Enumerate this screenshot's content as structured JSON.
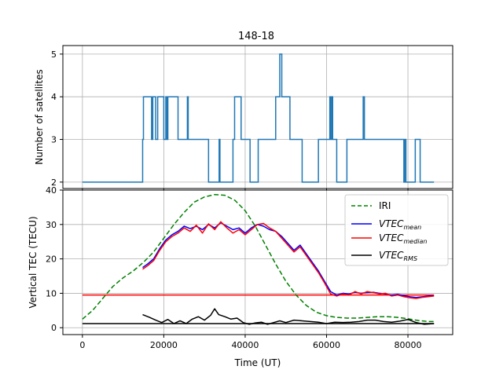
{
  "chart_data": [
    {
      "type": "line",
      "title": "148-18",
      "xlabel": "",
      "ylabel": "Number of satellites",
      "xlim": [
        -4800,
        91000
      ],
      "ylim": [
        1.85,
        5.2
      ],
      "yticks": [
        2,
        3,
        4,
        5
      ],
      "grid": true,
      "series": [
        {
          "name": "",
          "color": "#1f77b4",
          "step": true,
          "x": [
            0,
            14800,
            15000,
            17000,
            17300,
            18000,
            18500,
            20000,
            20500,
            20800,
            21000,
            23500,
            24000,
            25800,
            26000,
            27000,
            27500,
            31000,
            31300,
            33600,
            33800,
            34000,
            34200,
            37000,
            37400,
            39000,
            39300,
            41200,
            41400,
            43200,
            43500,
            47500,
            47800,
            48500,
            49000,
            50500,
            51000,
            54000,
            54200,
            58000,
            58300,
            60800,
            61000,
            61300,
            61500,
            62500,
            62800,
            65000,
            65300,
            69000,
            69300,
            69800,
            70000,
            79000,
            79200,
            79500,
            79700,
            81800,
            82000,
            83000,
            83300,
            86400
          ],
          "y": [
            2,
            3,
            4,
            3,
            4,
            3,
            4,
            3,
            4,
            3,
            4,
            3,
            3,
            4,
            3,
            3,
            3,
            2,
            2,
            3,
            2,
            2,
            2,
            3,
            4,
            3,
            3,
            2,
            2,
            3,
            3,
            4,
            4,
            5,
            4,
            4,
            3,
            2,
            2,
            3,
            3,
            4,
            3,
            4,
            3,
            2,
            2,
            3,
            3,
            4,
            3,
            3,
            3,
            2,
            3,
            2,
            2,
            3,
            3,
            2,
            2,
            2
          ]
        }
      ]
    },
    {
      "type": "line",
      "title": "",
      "xlabel": "Time (UT)",
      "ylabel": "Vertical TEC (TECU)",
      "xlim": [
        -4800,
        91000
      ],
      "ylim": [
        -2,
        40
      ],
      "xticks": [
        0,
        20000,
        40000,
        60000,
        80000
      ],
      "yticks": [
        0,
        10,
        20,
        30,
        40
      ],
      "grid": true,
      "legend_placement": "top-right",
      "series": [
        {
          "name": "IRI",
          "legend_text": "IRI",
          "color": "#008000",
          "dash": true,
          "x": [
            0,
            2500,
            5000,
            7500,
            10000,
            12500,
            15000,
            17500,
            20000,
            22500,
            25000,
            27500,
            30000,
            32500,
            35000,
            37500,
            40000,
            42500,
            45000,
            47500,
            50000,
            52500,
            55000,
            57500,
            60000,
            62500,
            65000,
            67500,
            70000,
            72500,
            75000,
            77500,
            80000,
            82500,
            85000,
            86400
          ],
          "y": [
            2.5,
            5,
            8.5,
            12,
            14.5,
            16.5,
            19,
            22,
            26,
            30,
            33.5,
            36.5,
            38,
            38.7,
            38.5,
            37,
            34,
            29.5,
            24,
            18.5,
            13.5,
            9.5,
            6.5,
            4.5,
            3.5,
            3,
            2.8,
            2.8,
            3,
            3.2,
            3.2,
            3,
            2.6,
            2.1,
            1.8,
            1.8
          ]
        },
        {
          "name": "VTEC_mean",
          "legend_math": "VTEC",
          "legend_sub": "mean",
          "color": "#0000ff",
          "x": [
            14800,
            16000,
            17500,
            19000,
            20500,
            22000,
            23500,
            25000,
            26500,
            28000,
            29500,
            31000,
            32500,
            34000,
            35500,
            37000,
            38500,
            40000,
            41500,
            43000,
            44500,
            46000,
            47500,
            49000,
            50500,
            52000,
            53500,
            55000,
            56500,
            58000,
            59500,
            61000,
            62500,
            64000,
            65500,
            67000,
            68500,
            70000,
            71500,
            73000,
            74500,
            76000,
            77500,
            79000,
            80500,
            82000,
            83500,
            85000,
            86400
          ],
          "y": [
            17.5,
            18.5,
            20,
            23,
            25.5,
            27,
            28,
            29.5,
            28.8,
            29.5,
            28.5,
            30,
            29,
            30.5,
            29.5,
            28.5,
            29,
            27.5,
            29,
            30,
            29.5,
            28.5,
            28,
            26.5,
            24.5,
            22.5,
            24,
            21.5,
            19,
            16.5,
            13.5,
            10.5,
            9.5,
            10,
            9.8,
            10.3,
            10,
            10.2,
            10.3,
            10,
            9.8,
            9.5,
            9.7,
            9.3,
            9,
            8.8,
            9,
            9.2,
            9.3
          ]
        },
        {
          "name": "VTEC_median",
          "legend_math": "VTEC",
          "legend_sub": "median",
          "color": "#ff0000",
          "x": [
            14800,
            16000,
            17500,
            19000,
            20500,
            22000,
            23500,
            25000,
            26500,
            28000,
            29500,
            31000,
            32500,
            34000,
            35500,
            37000,
            38500,
            40000,
            41500,
            43000,
            44500,
            46000,
            47500,
            49000,
            50500,
            52000,
            53500,
            55000,
            56500,
            58000,
            59500,
            61000,
            62500,
            64000,
            65500,
            67000,
            68500,
            70000,
            71500,
            73000,
            74500,
            76000,
            77500,
            79000,
            80500,
            82000,
            83500,
            85000,
            86400
          ],
          "y": [
            17,
            18,
            19.5,
            22.5,
            25,
            26.5,
            27.5,
            29,
            28,
            29.8,
            27.5,
            30.2,
            28.5,
            30.8,
            29,
            27.5,
            28.5,
            27,
            28.5,
            30,
            30.3,
            29,
            28,
            26,
            24,
            22,
            23.5,
            21,
            18.5,
            16,
            13,
            9.8,
            9.2,
            9.8,
            9.5,
            10.5,
            9.8,
            10.5,
            10.2,
            9.8,
            10,
            9.2,
            9.5,
            9,
            8.7,
            8.5,
            8.8,
            9,
            9.2
          ]
        },
        {
          "name": "VTEC_RMS",
          "legend_math": "VTEC",
          "legend_sub": "RMS",
          "color": "#000000",
          "x": [
            14800,
            16500,
            18000,
            19500,
            21000,
            22500,
            24000,
            25500,
            27000,
            28500,
            30000,
            31500,
            32500,
            33500,
            35000,
            36500,
            38000,
            39500,
            41000,
            42500,
            44000,
            45500,
            47000,
            48500,
            50000,
            52000,
            54000,
            56000,
            58000,
            60000,
            62000,
            64000,
            66000,
            68000,
            70000,
            72000,
            74000,
            76000,
            78000,
            80000,
            82000,
            84000,
            86400
          ],
          "y": [
            3.8,
            3,
            2.2,
            1.5,
            2.4,
            1.2,
            2,
            1.2,
            2.5,
            3.2,
            2.2,
            3.6,
            5.5,
            3.8,
            3.2,
            2.5,
            2.8,
            1.5,
            1,
            1.4,
            1.6,
            1,
            1.5,
            2,
            1.5,
            2.2,
            2,
            1.8,
            1.6,
            1.2,
            1.6,
            1.5,
            1.6,
            1.8,
            2.2,
            2.2,
            1.8,
            1.6,
            1.9,
            2.4,
            1.5,
            1,
            1.2
          ]
        }
      ],
      "reference_lines": [
        {
          "color": "#ff0000",
          "y": 9.5,
          "x": [
            0,
            86400
          ]
        },
        {
          "color": "#000000",
          "y": 1.2,
          "x": [
            0,
            86400
          ]
        }
      ]
    }
  ]
}
